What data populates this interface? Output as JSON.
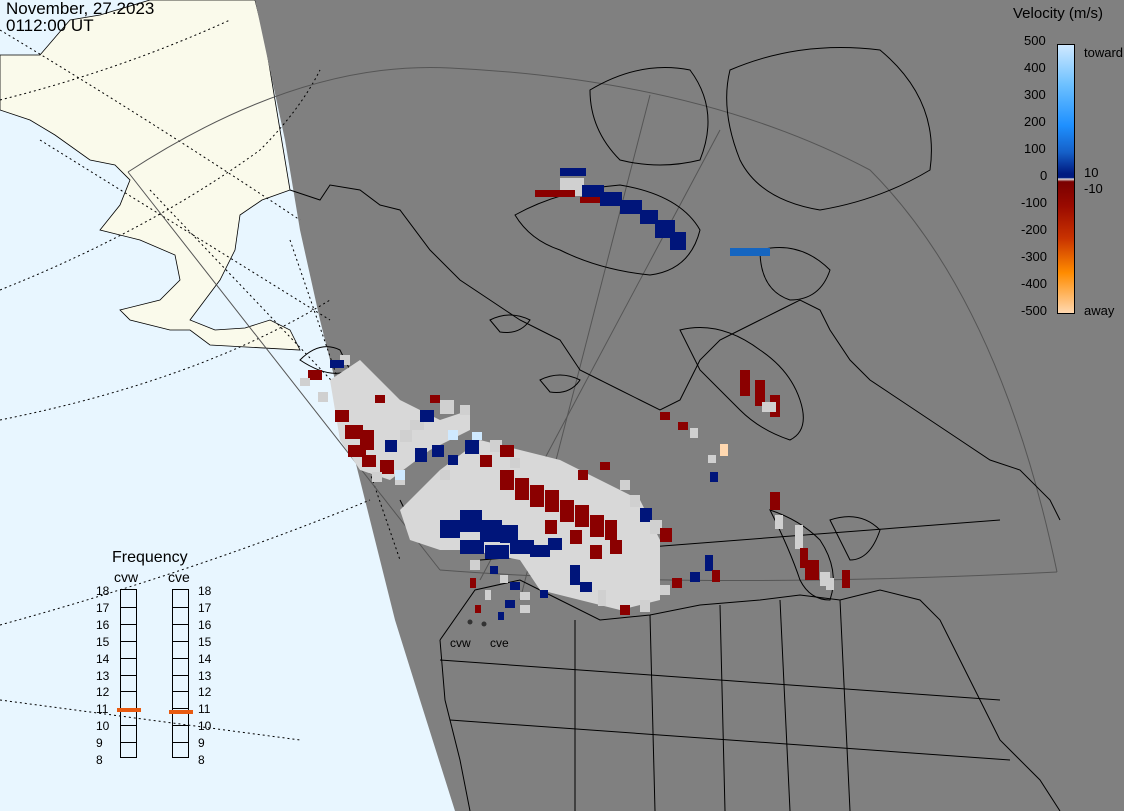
{
  "header": {
    "date": "November, 27.2023",
    "time": "0112:00 UT"
  },
  "colorbar": {
    "title": "Velocity (m/s)",
    "ticks": [
      "500",
      "400",
      "300",
      "200",
      "100",
      "0",
      "-100",
      "-200",
      "-300",
      "-400",
      "-500"
    ],
    "pos_threshold": "10",
    "neg_threshold": "-10",
    "top_label": "toward",
    "bottom_label": "away",
    "colors": [
      "#cfe9ff",
      "#6cc0ff",
      "#1e90ff",
      "#1560c8",
      "#0c3a9a",
      "#001a80",
      "#e0e0e0",
      "#7a0000",
      "#a81400",
      "#d04000",
      "#ff8c00",
      "#ffd0a0"
    ]
  },
  "frequency": {
    "title": "Frequency",
    "radars": [
      "cvw",
      "cve"
    ],
    "scale": [
      "18",
      "17",
      "16",
      "15",
      "14",
      "13",
      "12",
      "11",
      "10",
      "9",
      "8"
    ],
    "cvw_mhz": 10.9,
    "cve_mhz": 10.8
  },
  "sites": [
    "cvw",
    "cve"
  ],
  "map": {
    "ocean_color": "#e8f6ff",
    "night_color": "#808080",
    "land_day_color": "#fafaeb",
    "coast_color": "#000000"
  }
}
